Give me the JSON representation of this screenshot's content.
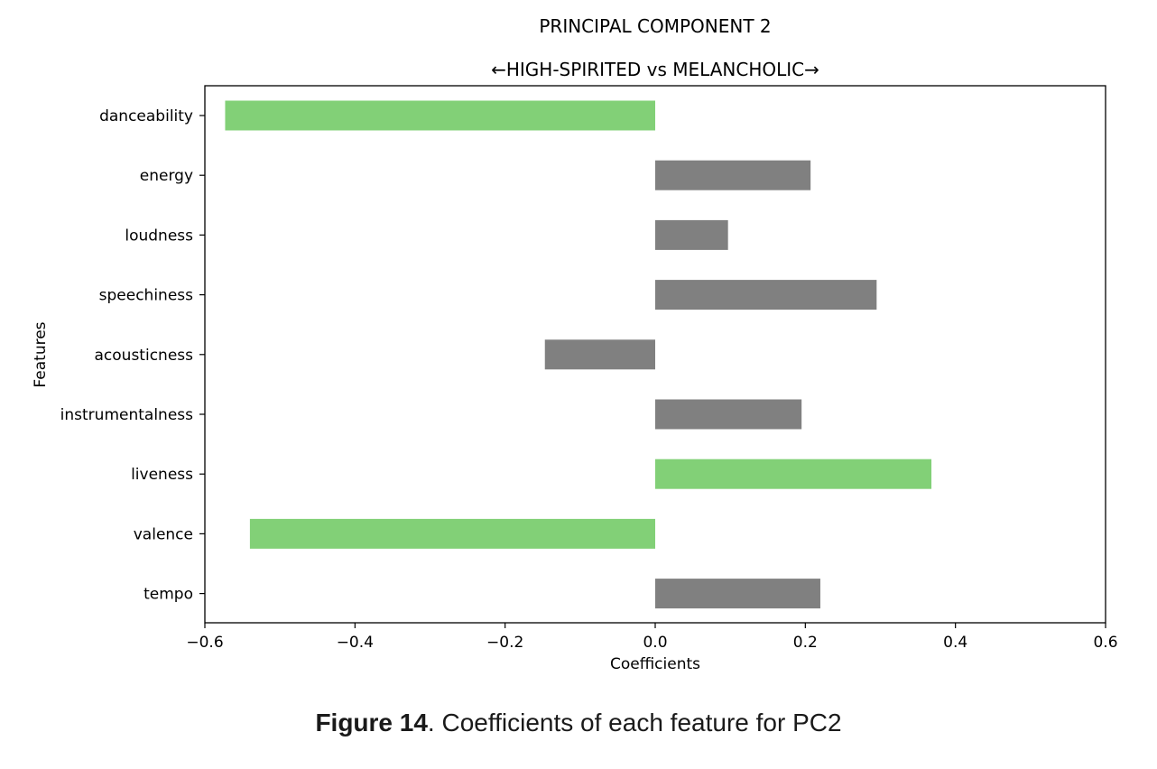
{
  "chart_data": {
    "type": "bar",
    "orientation": "horizontal",
    "title_line1": "PRINCIPAL COMPONENT 2",
    "title_line2": "←HIGH-SPIRITED vs MELANCHOLIC→",
    "xlabel": "Coefficients",
    "ylabel": "Features",
    "xlim": [
      -0.6,
      0.6
    ],
    "xticks": [
      -0.6,
      -0.4,
      -0.2,
      0.0,
      0.2,
      0.4,
      0.6
    ],
    "xtick_labels": [
      "−0.6",
      "−0.4",
      "−0.2",
      "0.0",
      "0.2",
      "0.4",
      "0.6"
    ],
    "categories": [
      "danceability",
      "energy",
      "loudness",
      "speechiness",
      "acousticness",
      "instrumentalness",
      "liveness",
      "valence",
      "tempo"
    ],
    "values": [
      -0.573,
      0.207,
      0.097,
      0.295,
      -0.147,
      0.195,
      0.368,
      -0.54,
      0.22
    ],
    "highlight": [
      true,
      false,
      false,
      false,
      false,
      false,
      true,
      true,
      false
    ],
    "highlight_color": "#82d077",
    "base_color": "#808080",
    "grid": false,
    "legend": "none"
  },
  "caption": {
    "label": "Figure 14",
    "text": ". Coefficients of each feature for PC2"
  }
}
